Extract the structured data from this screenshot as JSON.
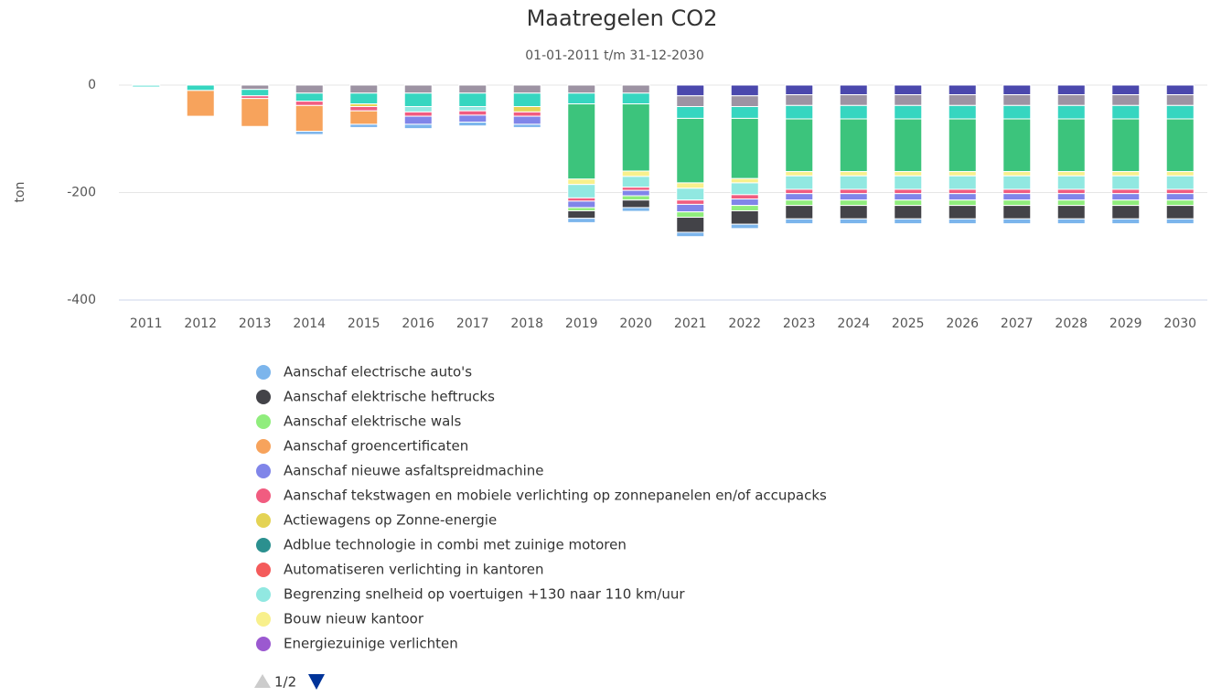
{
  "chart_data": {
    "type": "bar",
    "stacked": true,
    "title": "Maatregelen CO2",
    "subtitle": "01-01-2011 t/m 31-12-2030",
    "y_label": "ton",
    "legend_page": "1/2",
    "categories": [
      "2011",
      "2012",
      "2013",
      "2014",
      "2015",
      "2016",
      "2017",
      "2018",
      "2019",
      "2020",
      "2021",
      "2022",
      "2023",
      "2024",
      "2025",
      "2026",
      "2027",
      "2028",
      "2029",
      "2030"
    ],
    "ylim": [
      -400,
      0
    ],
    "yticks": [
      0,
      -200,
      -400
    ],
    "grid": true,
    "series": [
      {
        "name": "Aanschaf electrische auto's",
        "color": "#7cb5ec",
        "values": [
          0,
          0,
          0,
          -6,
          -6,
          -8,
          -7,
          -6,
          -8,
          -7,
          -8,
          -8,
          -9,
          -9,
          -9,
          -9,
          -9,
          -9,
          -9,
          -9
        ]
      },
      {
        "name": "Aanschaf elektrische heftrucks",
        "color": "#434348",
        "values": [
          0,
          0,
          0,
          0,
          0,
          0,
          0,
          0,
          -14,
          -14,
          -28,
          -25,
          -25,
          -25,
          -25,
          -25,
          -25,
          -25,
          -25,
          -25
        ]
      },
      {
        "name": "Aanschaf elektrische wals",
        "color": "#90ed7d",
        "values": [
          0,
          0,
          0,
          0,
          0,
          0,
          0,
          0,
          -6,
          -8,
          -10,
          -10,
          -10,
          -10,
          -10,
          -10,
          -10,
          -10,
          -10,
          -10
        ]
      },
      {
        "name": "Aanschaf groencertificaten",
        "color": "#f7a35c",
        "values": [
          0,
          -48,
          -52,
          -48,
          -25,
          0,
          0,
          0,
          0,
          0,
          0,
          0,
          0,
          0,
          0,
          0,
          0,
          0,
          0,
          0
        ]
      },
      {
        "name": "Aanschaf nieuwe asfaltspreidmachine",
        "color": "#8085e9",
        "values": [
          0,
          0,
          0,
          0,
          0,
          -15,
          -13,
          -15,
          -12,
          -10,
          -14,
          -12,
          -12,
          -12,
          -12,
          -12,
          -12,
          -12,
          -12,
          -12
        ]
      },
      {
        "name": "Aanschaf tekstwagen en mobiele verlichting op zonnepanelen en/of accupacks",
        "color": "#f15c80",
        "values": [
          0,
          0,
          -5,
          -8,
          -8,
          -8,
          -8,
          -8,
          -6,
          -6,
          -8,
          -8,
          -8,
          -8,
          -8,
          -8,
          -8,
          -8,
          -8,
          -8
        ]
      },
      {
        "name": "Actiewagens op Zonne-energie",
        "color": "#e4d354",
        "values": [
          0,
          0,
          0,
          0,
          -5,
          0,
          0,
          -10,
          0,
          0,
          0,
          0,
          0,
          0,
          0,
          0,
          0,
          0,
          0,
          0
        ]
      },
      {
        "name": "Adblue technologie in combi met zuinige motoren",
        "color": "#2b908f",
        "values": [
          0,
          0,
          0,
          0,
          0,
          0,
          0,
          0,
          0,
          0,
          0,
          0,
          0,
          0,
          0,
          0,
          0,
          0,
          0,
          0
        ]
      },
      {
        "name": "Automatiseren verlichting in kantoren",
        "color": "#f45b5b",
        "values": [
          0,
          0,
          0,
          0,
          0,
          0,
          0,
          0,
          0,
          0,
          0,
          0,
          0,
          0,
          0,
          0,
          0,
          0,
          0,
          0
        ]
      },
      {
        "name": "Begrenzing snelheid op voertuigen +130 naar 110 km/uur",
        "color": "#91e8e1",
        "values": [
          -4,
          0,
          0,
          0,
          0,
          -10,
          -8,
          0,
          -25,
          -20,
          -22,
          -22,
          -25,
          -25,
          -25,
          -25,
          -25,
          -25,
          -25,
          -25
        ]
      },
      {
        "name": "Bouw nieuw kantoor",
        "color": "#f8f08c",
        "values": [
          0,
          0,
          0,
          0,
          0,
          0,
          0,
          0,
          -10,
          -10,
          -10,
          -8,
          -8,
          -8,
          -8,
          -8,
          -8,
          -8,
          -8,
          -8
        ]
      },
      {
        "name": "Energiezuinige verlichten",
        "color": "#9b59d0",
        "values": [
          0,
          0,
          0,
          0,
          0,
          0,
          0,
          0,
          0,
          0,
          0,
          0,
          0,
          0,
          0,
          0,
          0,
          0,
          0,
          0
        ]
      },
      {
        "color": "#3cc47c",
        "values": [
          0,
          0,
          0,
          0,
          0,
          0,
          0,
          0,
          -140,
          -125,
          -120,
          -112,
          -98,
          -98,
          -98,
          -98,
          -98,
          -98,
          -98,
          -98
        ]
      },
      {
        "color": "#36d6c0",
        "values": [
          0,
          -10,
          -12,
          -15,
          -20,
          -25,
          -25,
          -25,
          -20,
          -20,
          -22,
          -22,
          -25,
          -25,
          -25,
          -25,
          -25,
          -25,
          -25,
          -25
        ]
      },
      {
        "color": "#9d93a3",
        "values": [
          0,
          0,
          -8,
          -15,
          -15,
          -15,
          -15,
          -15,
          -15,
          -15,
          -20,
          -20,
          -20,
          -20,
          -20,
          -20,
          -20,
          -20,
          -20,
          -20
        ]
      },
      {
        "color": "#4b48ad",
        "values": [
          0,
          0,
          0,
          0,
          0,
          0,
          0,
          0,
          0,
          0,
          -20,
          -20,
          -18,
          -18,
          -18,
          -18,
          -18,
          -18,
          -18,
          -18
        ]
      }
    ]
  }
}
